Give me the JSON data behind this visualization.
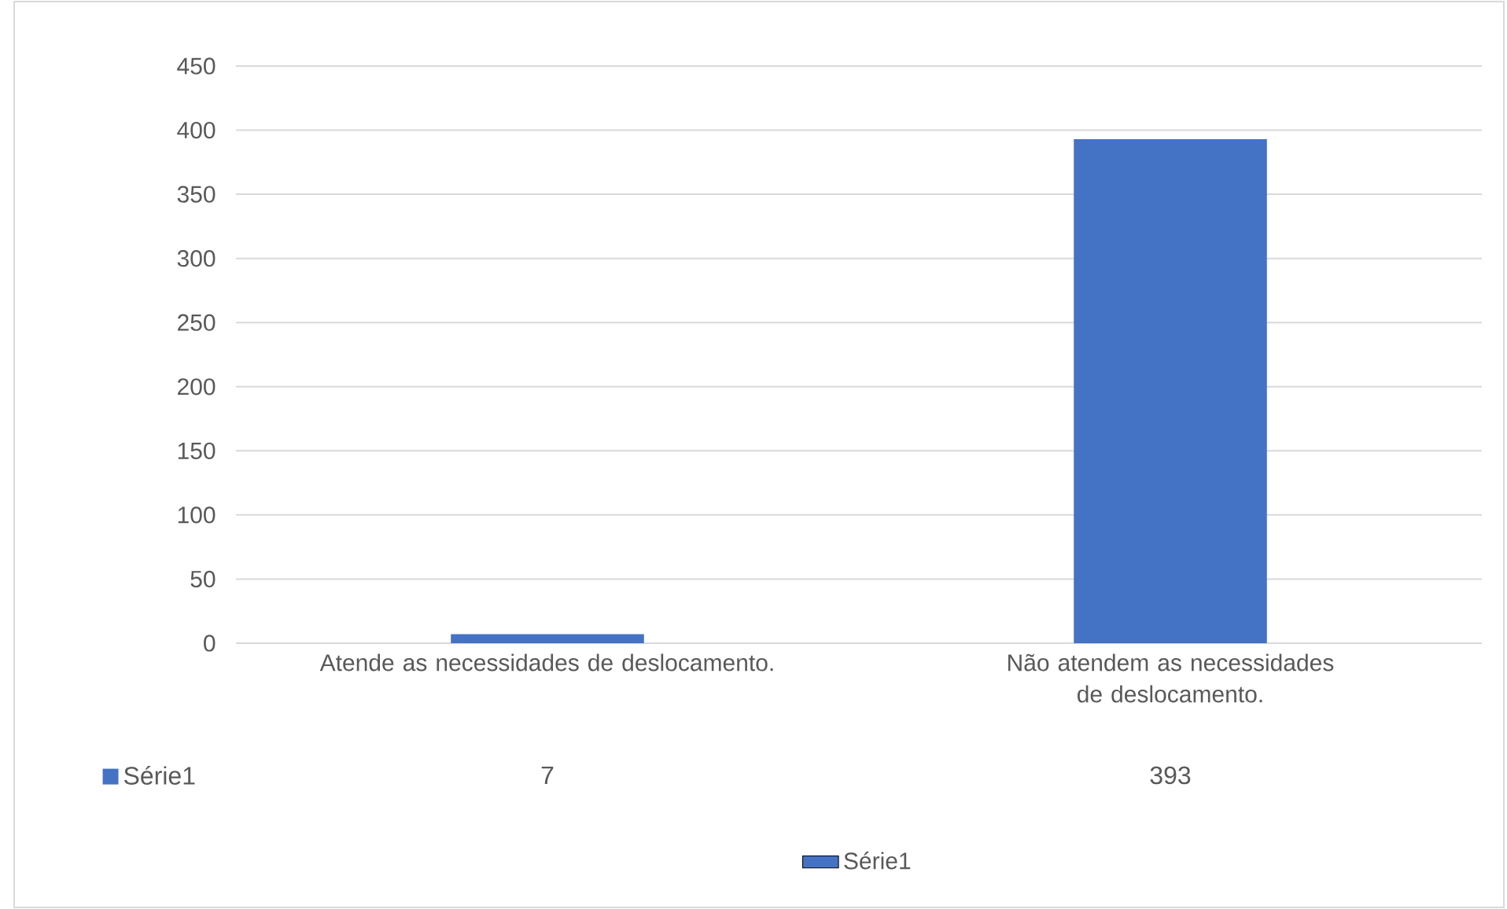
{
  "chart_data": {
    "type": "bar",
    "categories": [
      "Atende as necessidades de deslocamento.",
      "Não atendem as necessidades de deslocamento."
    ],
    "series": [
      {
        "name": "Série1",
        "color": "#4472c4",
        "values": [
          7,
          393
        ]
      }
    ],
    "ylim": [
      0,
      450
    ],
    "yticks": [
      0,
      50,
      100,
      150,
      200,
      250,
      300,
      350,
      400,
      450
    ],
    "grid": "y",
    "legend": "bottom",
    "data_labels": true
  }
}
